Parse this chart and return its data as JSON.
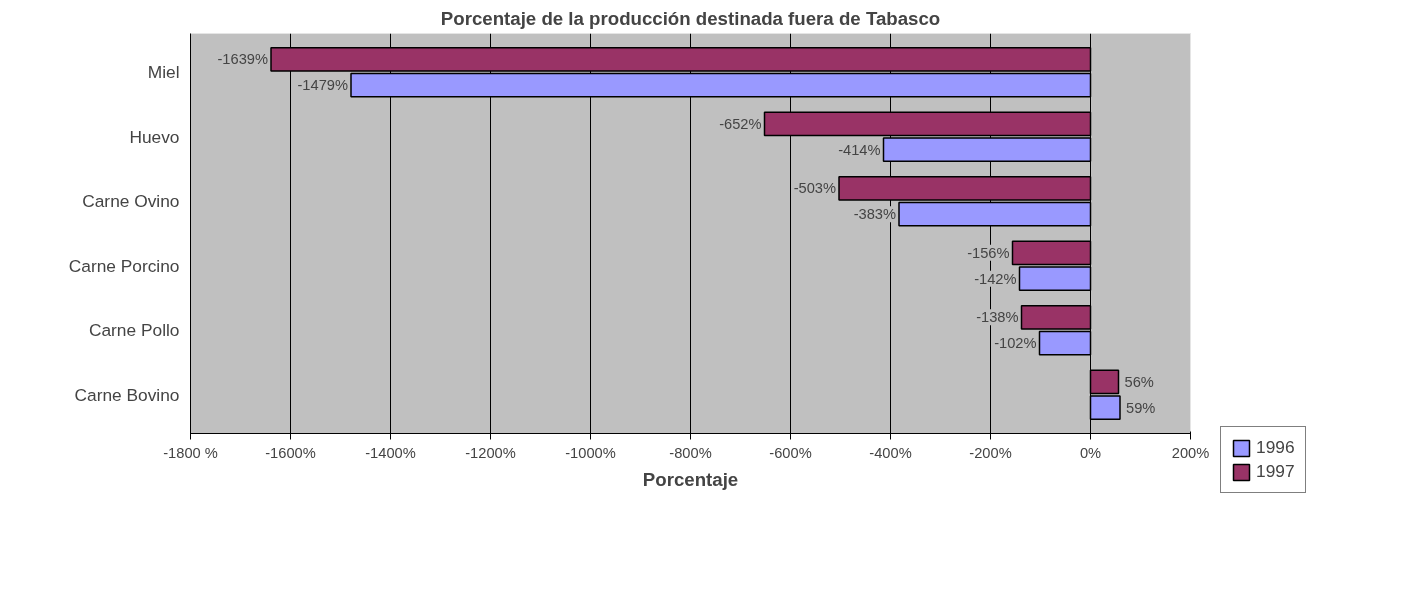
{
  "chart_data": {
    "type": "bar",
    "orientation": "horizontal",
    "title": "Porcentaje de la producción destinada fuera de Tabasco",
    "xlabel": "Porcentaje",
    "categories": [
      "Miel",
      "Huevo",
      "Carne Ovino",
      "Carne Porcino",
      "Carne Pollo",
      "Carne Bovino"
    ],
    "series": [
      {
        "name": "1996",
        "color": "#9999ff",
        "values": [
          -1479,
          -414,
          -383,
          -142,
          -102,
          59
        ],
        "value_labels": [
          "-1479%",
          "-414%",
          "-383%",
          "-142%",
          "-102%",
          "59%"
        ]
      },
      {
        "name": "1997",
        "color": "#993366",
        "values": [
          -1639,
          -652,
          -503,
          -156,
          -138,
          56
        ],
        "value_labels": [
          "-1639%",
          "-652%",
          "-503%",
          "-156%",
          "-138%",
          "56%"
        ]
      }
    ],
    "xlim": [
      -1800,
      200
    ],
    "xticks": [
      {
        "value": -1800,
        "label": "-1800 %"
      },
      {
        "value": -1600,
        "label": "-1600%"
      },
      {
        "value": -1400,
        "label": "-1400%"
      },
      {
        "value": -1200,
        "label": "-1200%"
      },
      {
        "value": -1000,
        "label": "-1000%"
      },
      {
        "value": -800,
        "label": "-800%"
      },
      {
        "value": -600,
        "label": "-600%"
      },
      {
        "value": -400,
        "label": "-400%"
      },
      {
        "value": -200,
        "label": "-200%"
      },
      {
        "value": 0,
        "label": "0%"
      },
      {
        "value": 200,
        "label": "200%"
      }
    ],
    "grid": "x",
    "legend": "bottom right"
  }
}
